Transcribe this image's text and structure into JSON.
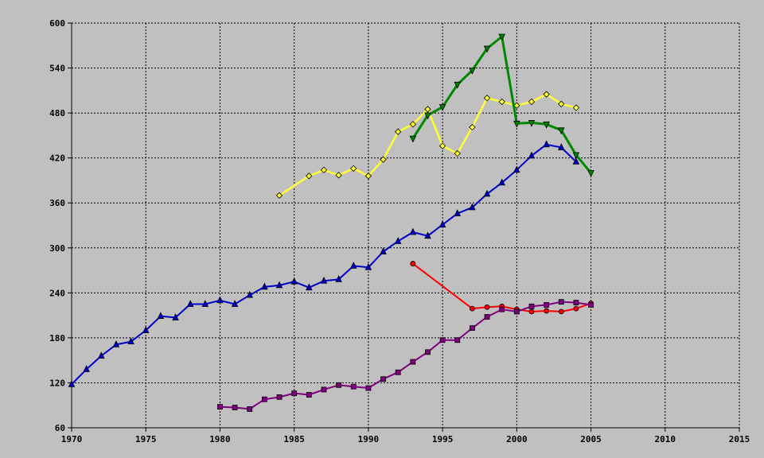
{
  "chart_data": {
    "type": "line",
    "title": "",
    "xlabel": "",
    "ylabel": "",
    "xlim": [
      1970,
      2015
    ],
    "ylim": [
      60,
      600
    ],
    "x_ticks": [
      1970,
      1975,
      1980,
      1985,
      1990,
      1995,
      2000,
      2005,
      2010,
      2015
    ],
    "y_ticks": [
      60,
      120,
      180,
      240,
      300,
      360,
      420,
      480,
      540,
      600
    ],
    "grid": true,
    "legend": "none",
    "background": "#c0c0c0",
    "series": [
      {
        "color": "#0000cc",
        "marker": "triangle-up",
        "x": [
          1970,
          1971,
          1972,
          1973,
          1974,
          1975,
          1976,
          1977,
          1978,
          1979,
          1980,
          1981,
          1982,
          1983,
          1984,
          1985,
          1986,
          1987,
          1988,
          1989,
          1990,
          1991,
          1992,
          1993,
          1994,
          1995,
          1996,
          1997,
          1998,
          1999,
          2000,
          2001,
          2002,
          2003,
          2004
        ],
        "y": [
          118,
          138,
          156,
          171,
          175,
          190,
          209,
          207,
          225,
          225,
          230,
          225,
          237,
          248,
          250,
          255,
          247,
          256,
          258,
          276,
          274,
          295,
          309,
          321,
          316,
          331,
          346,
          354,
          372,
          387,
          404,
          423,
          438,
          434,
          415
        ]
      },
      {
        "color": "#ffff33",
        "marker": "diamond",
        "x": [
          1984,
          1986,
          1987,
          1988,
          1989,
          1990,
          1991,
          1992,
          1993,
          1994,
          1995,
          1996,
          1997,
          1998,
          1999,
          2000,
          2001,
          2002,
          2003,
          2004
        ],
        "y": [
          370,
          396,
          404,
          397,
          406,
          396,
          418,
          455,
          465,
          485,
          436,
          426,
          461,
          500,
          495,
          490,
          495,
          505,
          492,
          487
        ]
      },
      {
        "color": "#008800",
        "marker": "triangle-down",
        "x": [
          1993,
          1994,
          1995,
          1996,
          1997,
          1998,
          1999,
          2000,
          2001,
          2002,
          2003,
          2004,
          2005
        ],
        "y": [
          446,
          477,
          488,
          518,
          537,
          566,
          582,
          466,
          467,
          465,
          457,
          424,
          400
        ]
      },
      {
        "color": "#ff0000",
        "marker": "circle",
        "x": [
          1993,
          1997,
          1998,
          1999,
          2000,
          2001,
          2002,
          2003,
          2004,
          2005
        ],
        "y": [
          279,
          219,
          221,
          222,
          218,
          215,
          216,
          215,
          219,
          226
        ]
      },
      {
        "color": "#800080",
        "marker": "square",
        "x": [
          1980,
          1981,
          1982,
          1983,
          1984,
          1985,
          1986,
          1987,
          1988,
          1989,
          1990,
          1991,
          1992,
          1993,
          1994,
          1995,
          1996,
          1997,
          1998,
          1999,
          2000,
          2001,
          2002,
          2003,
          2004,
          2005
        ],
        "y": [
          88,
          87,
          85,
          98,
          101,
          106,
          104,
          111,
          117,
          115,
          113,
          125,
          134,
          148,
          161,
          177,
          177,
          193,
          208,
          218,
          215,
          222,
          224,
          228,
          227,
          224
        ]
      }
    ]
  }
}
